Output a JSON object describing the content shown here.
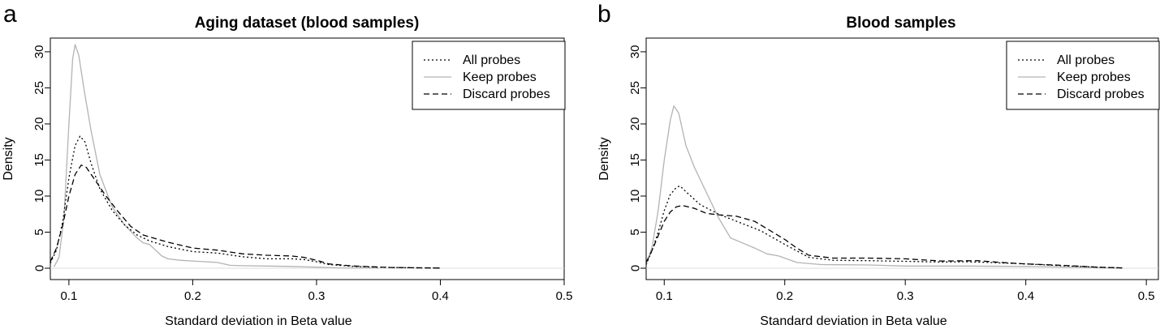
{
  "chart_data": [
    {
      "panel_label": "a",
      "type": "line",
      "title": "Aging dataset (blood samples)",
      "xlabel": "Standard deviation in Beta value",
      "ylabel": "Density",
      "xlim": [
        0.085,
        0.5
      ],
      "ylim": [
        0,
        31
      ],
      "xticks": [
        "0.1",
        "0.2",
        "0.3",
        "0.4",
        "0.5"
      ],
      "yticks": [
        "0",
        "5",
        "10",
        "15",
        "20",
        "25",
        "30"
      ],
      "legend_position": "top-right",
      "series": [
        {
          "name": "All probes",
          "style": "dotted",
          "color": "#000000",
          "points": [
            [
              0.085,
              0.7
            ],
            [
              0.09,
              2.5
            ],
            [
              0.095,
              6.5
            ],
            [
              0.1,
              12.5
            ],
            [
              0.105,
              17
            ],
            [
              0.109,
              18.3
            ],
            [
              0.113,
              17.5
            ],
            [
              0.118,
              14.5
            ],
            [
              0.125,
              11
            ],
            [
              0.135,
              8
            ],
            [
              0.145,
              6
            ],
            [
              0.155,
              4.6
            ],
            [
              0.165,
              3.8
            ],
            [
              0.18,
              3.0
            ],
            [
              0.2,
              2.3
            ],
            [
              0.22,
              2.1
            ],
            [
              0.24,
              1.6
            ],
            [
              0.26,
              1.3
            ],
            [
              0.28,
              1.3
            ],
            [
              0.29,
              1.2
            ],
            [
              0.3,
              0.9
            ],
            [
              0.31,
              0.5
            ],
            [
              0.33,
              0.25
            ],
            [
              0.36,
              0.1
            ],
            [
              0.4,
              0.02
            ]
          ]
        },
        {
          "name": "Keep probes",
          "style": "solid",
          "color": "#b3b3b3",
          "points": [
            [
              0.088,
              0.2
            ],
            [
              0.092,
              1.5
            ],
            [
              0.096,
              7
            ],
            [
              0.1,
              20
            ],
            [
              0.103,
              29
            ],
            [
              0.105,
              31
            ],
            [
              0.108,
              29.5
            ],
            [
              0.112,
              25
            ],
            [
              0.118,
              19
            ],
            [
              0.125,
              13
            ],
            [
              0.135,
              8.5
            ],
            [
              0.145,
              6
            ],
            [
              0.155,
              4.2
            ],
            [
              0.16,
              3.5
            ],
            [
              0.165,
              3.3
            ],
            [
              0.17,
              2.5
            ],
            [
              0.175,
              1.7
            ],
            [
              0.18,
              1.3
            ],
            [
              0.19,
              1.1
            ],
            [
              0.2,
              1.0
            ],
            [
              0.21,
              0.9
            ],
            [
              0.22,
              0.8
            ],
            [
              0.23,
              0.4
            ],
            [
              0.24,
              0.35
            ],
            [
              0.26,
              0.3
            ],
            [
              0.28,
              0.25
            ],
            [
              0.3,
              0.15
            ],
            [
              0.32,
              0.05
            ],
            [
              0.35,
              0.02
            ]
          ]
        },
        {
          "name": "Discard probes",
          "style": "dashed",
          "color": "#000000",
          "points": [
            [
              0.085,
              0.9
            ],
            [
              0.09,
              2.8
            ],
            [
              0.095,
              6
            ],
            [
              0.1,
              10
            ],
            [
              0.105,
              13
            ],
            [
              0.11,
              14.3
            ],
            [
              0.114,
              14
            ],
            [
              0.12,
              12.5
            ],
            [
              0.13,
              10
            ],
            [
              0.14,
              7.8
            ],
            [
              0.15,
              5.8
            ],
            [
              0.16,
              4.6
            ],
            [
              0.17,
              4.1
            ],
            [
              0.18,
              3.6
            ],
            [
              0.2,
              2.8
            ],
            [
              0.22,
              2.5
            ],
            [
              0.24,
              2.0
            ],
            [
              0.26,
              1.8
            ],
            [
              0.28,
              1.7
            ],
            [
              0.29,
              1.5
            ],
            [
              0.3,
              1.1
            ],
            [
              0.31,
              0.6
            ],
            [
              0.33,
              0.3
            ],
            [
              0.36,
              0.1
            ],
            [
              0.4,
              0.02
            ]
          ]
        }
      ]
    },
    {
      "panel_label": "b",
      "type": "line",
      "title": "Blood samples",
      "xlabel": "Standard deviation in Beta value",
      "ylabel": "Density",
      "xlim": [
        0.085,
        0.51
      ],
      "ylim": [
        0,
        31
      ],
      "xticks": [
        "0.1",
        "0.2",
        "0.3",
        "0.4",
        "0.5"
      ],
      "yticks": [
        "0",
        "5",
        "10",
        "15",
        "20",
        "25",
        "30"
      ],
      "legend_position": "top-right",
      "series": [
        {
          "name": "All probes",
          "style": "dotted",
          "color": "#000000",
          "points": [
            [
              0.085,
              0.5
            ],
            [
              0.09,
              2.5
            ],
            [
              0.095,
              5
            ],
            [
              0.1,
              8
            ],
            [
              0.105,
              10.2
            ],
            [
              0.11,
              11.2
            ],
            [
              0.113,
              11.4
            ],
            [
              0.12,
              10.3
            ],
            [
              0.13,
              8.8
            ],
            [
              0.145,
              7.5
            ],
            [
              0.16,
              6.5
            ],
            [
              0.18,
              5.2
            ],
            [
              0.2,
              3.3
            ],
            [
              0.22,
              1.5
            ],
            [
              0.24,
              1.1
            ],
            [
              0.27,
              1.05
            ],
            [
              0.3,
              0.95
            ],
            [
              0.33,
              0.85
            ],
            [
              0.35,
              0.9
            ],
            [
              0.37,
              0.8
            ],
            [
              0.4,
              0.6
            ],
            [
              0.43,
              0.35
            ],
            [
              0.46,
              0.15
            ],
            [
              0.48,
              0.05
            ]
          ]
        },
        {
          "name": "Keep probes",
          "style": "solid",
          "color": "#b3b3b3",
          "points": [
            [
              0.085,
              0.5
            ],
            [
              0.09,
              3
            ],
            [
              0.095,
              8
            ],
            [
              0.1,
              15
            ],
            [
              0.105,
              20.5
            ],
            [
              0.108,
              22.5
            ],
            [
              0.112,
              21.5
            ],
            [
              0.118,
              17
            ],
            [
              0.125,
              14
            ],
            [
              0.135,
              10.5
            ],
            [
              0.145,
              7
            ],
            [
              0.155,
              4.2
            ],
            [
              0.165,
              3.5
            ],
            [
              0.175,
              2.8
            ],
            [
              0.185,
              2.0
            ],
            [
              0.195,
              1.7
            ],
            [
              0.21,
              0.8
            ],
            [
              0.23,
              0.5
            ],
            [
              0.27,
              0.45
            ],
            [
              0.3,
              0.3
            ],
            [
              0.35,
              0.3
            ],
            [
              0.4,
              0.25
            ],
            [
              0.45,
              0.1
            ],
            [
              0.48,
              0.02
            ]
          ]
        },
        {
          "name": "Discard probes",
          "style": "dashed",
          "color": "#000000",
          "points": [
            [
              0.085,
              0.8
            ],
            [
              0.09,
              2.5
            ],
            [
              0.095,
              4.5
            ],
            [
              0.1,
              6.5
            ],
            [
              0.105,
              7.8
            ],
            [
              0.11,
              8.5
            ],
            [
              0.115,
              8.7
            ],
            [
              0.125,
              8.3
            ],
            [
              0.135,
              7.6
            ],
            [
              0.145,
              7.4
            ],
            [
              0.16,
              7.2
            ],
            [
              0.175,
              6.5
            ],
            [
              0.19,
              5.0
            ],
            [
              0.2,
              4.0
            ],
            [
              0.21,
              2.8
            ],
            [
              0.22,
              1.8
            ],
            [
              0.24,
              1.4
            ],
            [
              0.27,
              1.4
            ],
            [
              0.3,
              1.3
            ],
            [
              0.33,
              1.0
            ],
            [
              0.36,
              1.05
            ],
            [
              0.38,
              0.8
            ],
            [
              0.4,
              0.6
            ],
            [
              0.43,
              0.4
            ],
            [
              0.46,
              0.15
            ],
            [
              0.48,
              0.05
            ]
          ]
        }
      ]
    }
  ]
}
